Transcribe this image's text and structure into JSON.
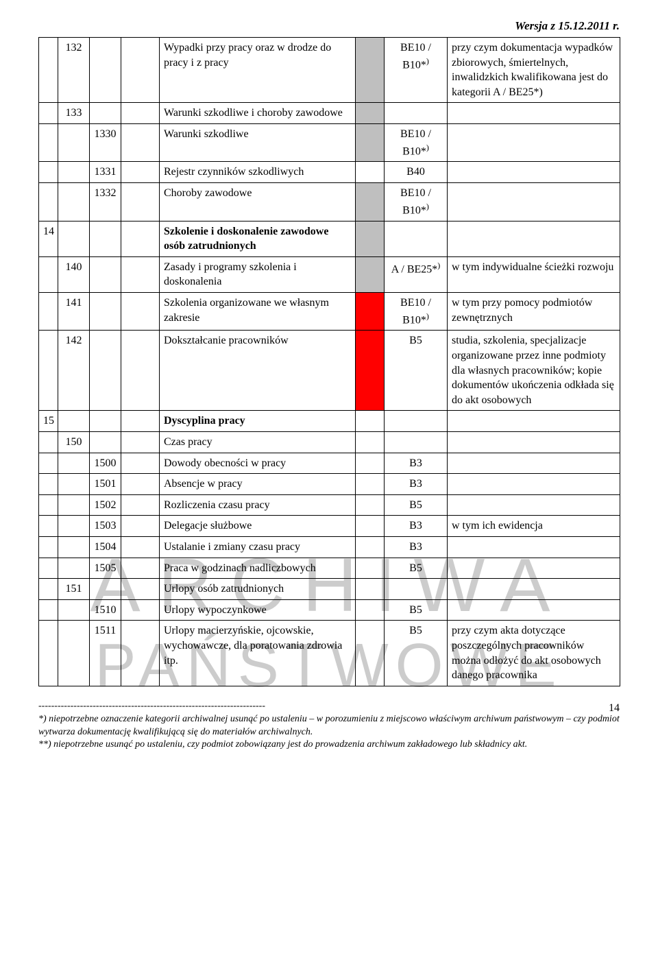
{
  "header": "Wersja z 15.12.2011 r.",
  "watermark": {
    "line1": "ARCHIWA",
    "line2": "PAŃSTWOWE"
  },
  "page_number": "14",
  "columns": {
    "c1_w": 28,
    "c2_w": 46,
    "c3_w": 46,
    "c4_w": 56,
    "desc_w": 286,
    "cat1_w": 42,
    "cat2_w": 92,
    "notes_w": 252
  },
  "rows": [
    {
      "c2": "132",
      "desc": "Wypadki przy pracy oraz w drodze do pracy i z pracy",
      "cat_shade": true,
      "cat2": "BE10 / B10*)",
      "notes": "przy czym dokumentacja wypadków zbiorowych, śmiertelnych, inwalidzkich kwalifikowana jest do kategorii A / BE25*)"
    },
    {
      "c2": "133",
      "desc": "Warunki szkodliwe i choroby zawodowe",
      "cat_shade": true,
      "cat2": "",
      "notes": ""
    },
    {
      "c3": "1330",
      "desc": "Warunki szkodliwe",
      "cat_shade": true,
      "cat2": "BE10 / B10*)",
      "notes": ""
    },
    {
      "c3": "1331",
      "desc": "Rejestr czynników szkodliwych",
      "cat_shade": false,
      "cat2": "B40",
      "notes": ""
    },
    {
      "c3": "1332",
      "desc": "Choroby zawodowe",
      "cat_shade": true,
      "cat2": "BE10 / B10*)",
      "notes": ""
    },
    {
      "c1": "14",
      "desc": "Szkolenie i doskonalenie zawodowe osób zatrudnionych",
      "bold": true,
      "cat_shade": true,
      "cat2": "",
      "notes": ""
    },
    {
      "c2": "140",
      "desc": "Zasady i programy szkolenia i doskonalenia",
      "cat_shade": true,
      "cat2": "A / BE25*)",
      "notes": "w tym indywidualne ścieżki rozwoju"
    },
    {
      "c2": "141",
      "desc": "Szkolenia organizowane we własnym zakresie",
      "cat_red": true,
      "cat2": "BE10 / B10*)",
      "notes": "w tym przy pomocy podmiotów zewnętrznych"
    },
    {
      "c2": "142",
      "desc": "Dokształcanie pracowników",
      "cat_red": true,
      "cat2": "B5",
      "notes": "studia, szkolenia, specjalizacje organizowane przez inne podmioty dla własnych pracowników; kopie dokumentów ukończenia odkłada się do akt osobowych"
    },
    {
      "c1": "15",
      "desc": "Dyscyplina pracy",
      "bold": true,
      "cat_shade": false,
      "cat2": "",
      "notes": ""
    },
    {
      "c2": "150",
      "desc": "Czas pracy",
      "cat_shade": false,
      "cat2": "",
      "notes": ""
    },
    {
      "c3": "1500",
      "desc": "Dowody obecności w pracy",
      "cat_shade": false,
      "cat2": "B3",
      "notes": ""
    },
    {
      "c3": "1501",
      "desc": "Absencje w pracy",
      "cat_shade": false,
      "cat2": "B3",
      "notes": ""
    },
    {
      "c3": "1502",
      "desc": "Rozliczenia czasu pracy",
      "cat_shade": false,
      "cat2": "B5",
      "notes": ""
    },
    {
      "c3": "1503",
      "desc": "Delegacje służbowe",
      "cat_shade": false,
      "cat2": "B3",
      "notes": "w tym ich ewidencja"
    },
    {
      "c3": "1504",
      "desc": "Ustalanie i zmiany czasu pracy",
      "cat_shade": false,
      "cat2": "B3",
      "notes": ""
    },
    {
      "c3": "1505",
      "desc": "Praca w godzinach nadliczbowych",
      "cat_shade": false,
      "cat2": "B5",
      "notes": ""
    },
    {
      "c2": "151",
      "desc": "Urlopy osób zatrudnionych",
      "cat_shade": false,
      "cat2": "",
      "notes": ""
    },
    {
      "c3": "1510",
      "desc": "Urlopy wypoczynkowe",
      "cat_shade": false,
      "cat2": "B5",
      "notes": ""
    },
    {
      "c3": "1511",
      "desc": "Urlopy macierzyńskie, ojcowskie, wychowawcze, dla poratowania zdrowia itp.",
      "cat_shade": false,
      "cat2": "B5",
      "notes": "przy czym akta dotyczące poszczególnych pracowników można odłożyć do akt osobowych danego pracownika"
    }
  ],
  "footer": {
    "dashes": "-----------------------------------------------------------------------",
    "line1": "*) niepotrzebne oznaczenie kategorii archiwalnej usunąć po ustaleniu – w porozumieniu z miejscowo właściwym archiwum państwowym – czy podmiot wytwarza dokumentację kwalifikującą się do materiałów archiwalnych.",
    "line2": "**) niepotrzebne usunąć po ustaleniu, czy podmiot zobowiązany jest do prowadzenia archiwum zakładowego lub składnicy akt."
  }
}
